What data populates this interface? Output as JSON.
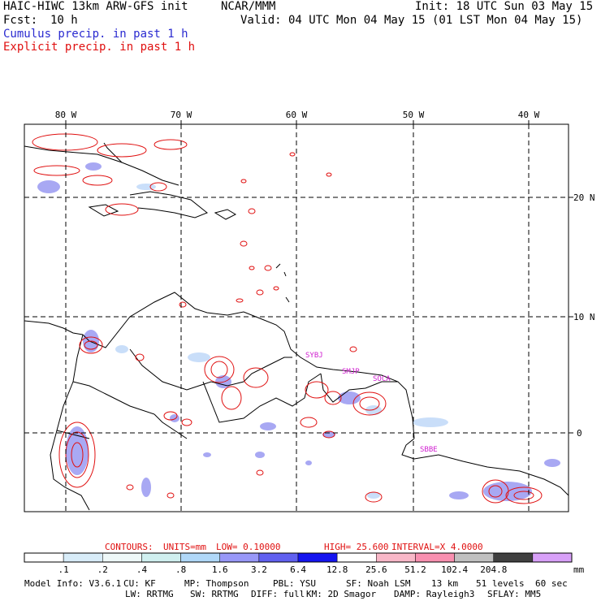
{
  "header": {
    "model_title": "HAIC-HIWC 13km ARW-GFS init",
    "center": "NCAR/MMM",
    "init": "Init: 18 UTC Sun 03 May 15",
    "fcst_label": "Fcst:",
    "fcst_value": "10 h",
    "valid": "Valid: 04 UTC Mon 04 May 15 (01 LST Mon 04 May 15)",
    "field_1": "Cumulus precip. in past 1 h",
    "field_2": "Explicit precip. in past 1 h"
  },
  "map": {
    "lon_labels": [
      "80 W",
      "70 W",
      "60 W",
      "50 W",
      "40 W"
    ],
    "lat_labels": [
      "20 N",
      "10 N",
      "0"
    ],
    "station_labels": [
      "SYBJ",
      "SMJP",
      "SOCA",
      "SBBE"
    ]
  },
  "contours": {
    "label": "CONTOURS:",
    "units": "UNITS=mm",
    "low": "LOW= 0.10000",
    "high": "HIGH= 25.600",
    "interval": "INTERVAL=X 4.0000"
  },
  "colorbar": {
    "colors": [
      "#ffffff",
      "#d8ecf8",
      "#eef8f8",
      "#d0f0f0",
      "#b0d8f8",
      "#9898f8",
      "#6060f0",
      "#1414f0",
      "#ffffff",
      "#f8b8c8",
      "#f890b0",
      "#c0c0c0",
      "#404040",
      "#d8a0f8"
    ],
    "ticks": [
      ".1",
      ".2",
      ".4",
      ".8",
      "1.6",
      "3.2",
      "6.4",
      "12.8",
      "25.6",
      "51.2",
      "102.4",
      "204.8"
    ],
    "unit": "mm"
  },
  "model_info": {
    "line1": [
      "Model Info: V3.6.1",
      "CU: KF",
      "MP: Thompson",
      "PBL: YSU",
      "SF: Noah LSM",
      "13 km",
      "51 levels",
      "60 sec"
    ],
    "line2": [
      "LW: RRTMG",
      "SW: RRTMG",
      "DIFF: full",
      "KM: 2D Smagor",
      "DAMP: Rayleigh3",
      "SFLAY: MM5"
    ]
  },
  "colors": {
    "cumulus": "#2a2ad0",
    "explicit": "#e01010",
    "coast": "#000000",
    "station": "#d020d0"
  }
}
